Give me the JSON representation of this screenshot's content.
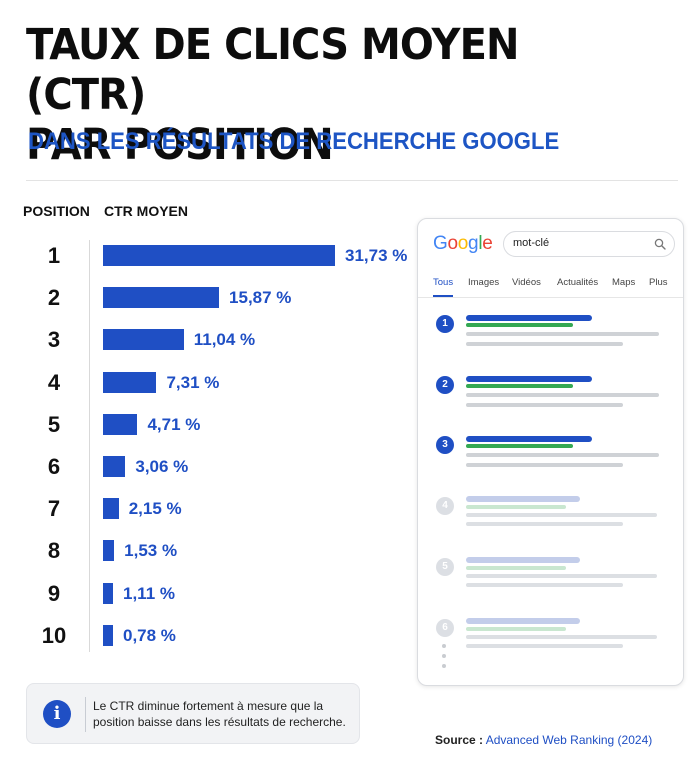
{
  "header": {
    "title_line1": "TAUX DE CLICS MOYEN (CTR)",
    "title_line2": "PAR POSITION",
    "subtitle": "DANS LES RÉSULTATS DE RECHERCHE GOOGLE"
  },
  "chart_data": {
    "type": "bar",
    "orientation": "horizontal",
    "column_headers": [
      "POSITION",
      "CTR MOYEN"
    ],
    "categories": [
      "1",
      "2",
      "3",
      "4",
      "5",
      "6",
      "7",
      "8",
      "9",
      "10"
    ],
    "values": [
      31.73,
      15.87,
      11.04,
      7.31,
      4.71,
      3.06,
      2.15,
      1.53,
      1.11,
      0.78
    ],
    "value_labels": [
      "31,73 %",
      "15,87 %",
      "11,04 %",
      "7,31 %",
      "4,71 %",
      "3,06 %",
      "2,15 %",
      "1,53 %",
      "1,11 %",
      "0,78 %"
    ],
    "bar_color": "#1f4fc4",
    "grid": false
  },
  "note": {
    "icon": "info-icon",
    "text": "Le CTR diminue fortement à mesure que la position baisse dans les résultats de recherche."
  },
  "source": {
    "label": "Source :",
    "name": "Advanced Web Ranking (2024)"
  },
  "mockup": {
    "logo": [
      "G",
      "o",
      "o",
      "g",
      "l",
      "e"
    ],
    "search_value": "mot-clé",
    "tabs": [
      "Tous",
      "Images",
      "Vidéos",
      "Actualités",
      "Maps",
      "Plus"
    ],
    "active_tab": "Tous",
    "results": [
      "1",
      "2",
      "3",
      "4",
      "5",
      "6"
    ],
    "highlighted_results": 3,
    "colors": {
      "link": "#1f4fc4",
      "url": "#34a853",
      "text": "#cfd2d6"
    }
  }
}
